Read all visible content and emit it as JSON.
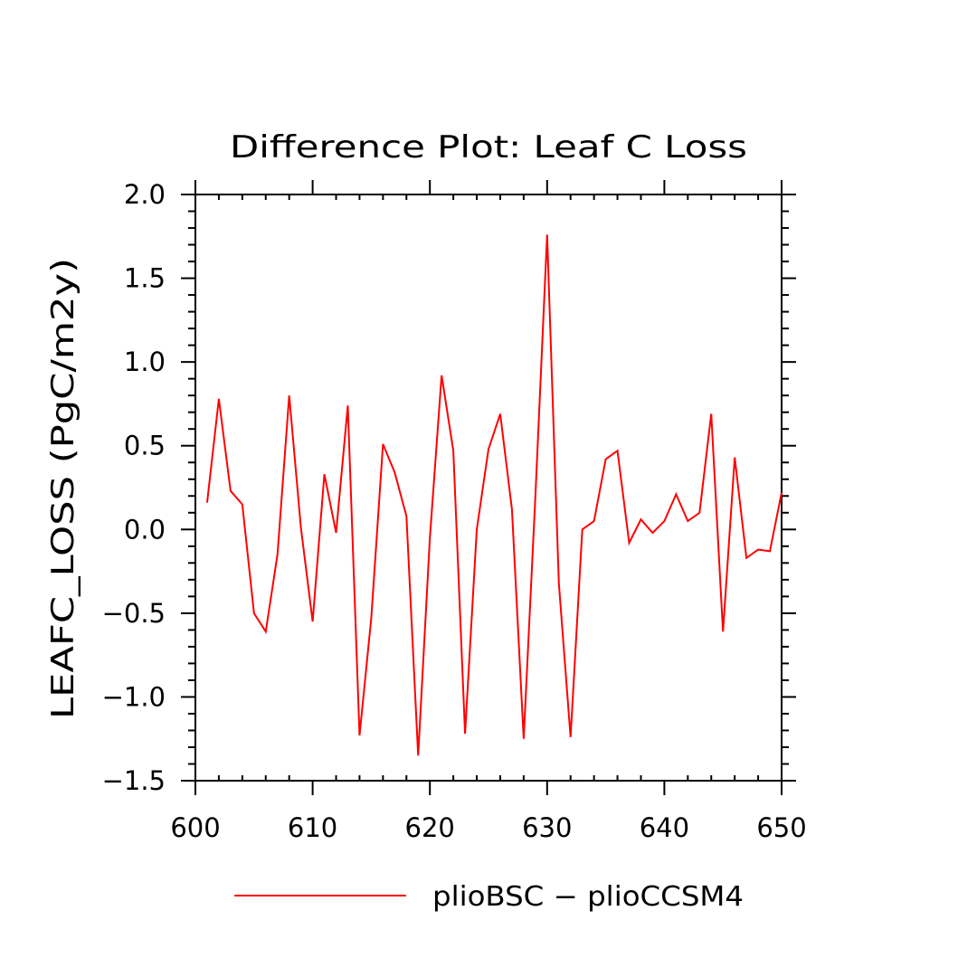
{
  "chart_data": {
    "type": "line",
    "title": "Difference Plot: Leaf C Loss",
    "xlabel": "",
    "ylabel": "LEAFC_LOSS   (PgC/m2y)",
    "xlim": [
      600,
      650
    ],
    "ylim": [
      -1.5,
      2.0
    ],
    "x_ticks": [
      600,
      610,
      620,
      630,
      640,
      650
    ],
    "x_tick_labels": [
      "600",
      "610",
      "620",
      "630",
      "640",
      "650"
    ],
    "y_ticks": [
      -1.5,
      -1.0,
      -0.5,
      0.0,
      0.5,
      1.0,
      1.5,
      2.0
    ],
    "y_tick_labels": [
      "−1.5",
      "−1.0",
      "−0.5",
      "0.0",
      "0.5",
      "1.0",
      "1.5",
      "2.0"
    ],
    "grid": false,
    "legend_position": "bottom",
    "series": [
      {
        "name": "plioBSC − plioCCSM4",
        "color": "#ff0000",
        "x": [
          601,
          602,
          603,
          604,
          605,
          606,
          607,
          608,
          609,
          610,
          611,
          612,
          613,
          614,
          615,
          616,
          617,
          618,
          619,
          620,
          621,
          622,
          623,
          624,
          625,
          626,
          627,
          628,
          629,
          630,
          631,
          632,
          633,
          634,
          635,
          636,
          637,
          638,
          639,
          640,
          641,
          642,
          643,
          644,
          645,
          646,
          647,
          648,
          649,
          650
        ],
        "y": [
          0.16,
          0.78,
          0.23,
          0.15,
          -0.5,
          -0.61,
          -0.15,
          0.8,
          0.01,
          -0.55,
          0.33,
          -0.02,
          0.74,
          -1.23,
          -0.53,
          0.51,
          0.34,
          0.08,
          -1.35,
          -0.05,
          0.92,
          0.47,
          -1.22,
          0.0,
          0.48,
          0.69,
          0.12,
          -1.25,
          0.2,
          1.76,
          -0.32,
          -1.24,
          0.0,
          0.05,
          0.42,
          0.47,
          -0.08,
          0.06,
          -0.02,
          0.05,
          0.21,
          0.05,
          0.1,
          0.69,
          -0.61,
          0.43,
          -0.17,
          -0.12,
          -0.13,
          0.22
        ]
      }
    ]
  }
}
